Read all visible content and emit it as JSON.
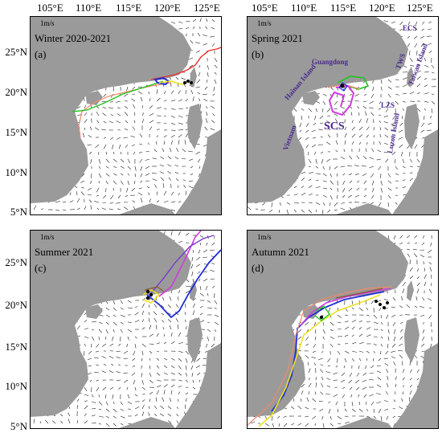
{
  "x_ticks": [
    "105°E",
    "110°E",
    "115°E",
    "120°E",
    "125°E"
  ],
  "y_ticks": [
    "25°N",
    "20°N",
    "15°N",
    "10°N",
    "5°N"
  ],
  "y_ticks_bottom": [
    "25°N",
    "20°N",
    "15°N",
    "10°N",
    "5°N"
  ],
  "scale_label": "1m/s",
  "panels": [
    {
      "id": "a",
      "title": "Winter 2020-2021",
      "label": "(a)"
    },
    {
      "id": "b",
      "title": "Spring 2021",
      "label": "(b)"
    },
    {
      "id": "c",
      "title": "Summer 2021",
      "label": "(c)"
    },
    {
      "id": "d",
      "title": "Autumn 2021",
      "label": "(d)"
    }
  ],
  "geo_labels": {
    "guangdong": "Guangdong",
    "hainan": "Hainan Island",
    "vietnam": "Vietnam",
    "scs": "SCS",
    "tws": "TWS",
    "taiwan": "Taiwan Island",
    "ecs": "ECS",
    "lzs": "LZS",
    "luzon": "Luzon Island"
  },
  "colors": {
    "land": "#9a9a9a",
    "arrow": "#1a1a1a",
    "geo_text": "#4b2a8f",
    "tracks": [
      "#e8302a",
      "#1f2fd6",
      "#23c420",
      "#f0e020",
      "#d23be0",
      "#f08a6a",
      "#8a5a2a",
      "#7a3ad0"
    ]
  }
}
